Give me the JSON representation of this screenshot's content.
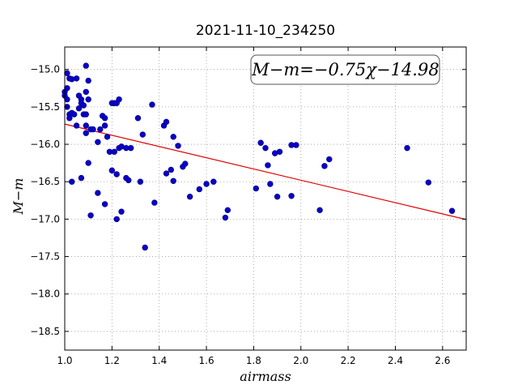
{
  "chart_data": {
    "type": "scatter",
    "title": "2021-11-10_234250",
    "xlabel": "airmass",
    "ylabel": "M−m",
    "xlim": [
      1.0,
      2.7
    ],
    "ylim": [
      -18.75,
      -14.7
    ],
    "invert_y": true,
    "x_ticks": [
      1.0,
      1.2,
      1.4,
      1.6,
      1.8,
      2.0,
      2.2,
      2.4,
      2.6
    ],
    "x_tick_labels": [
      "1.0",
      "1.2",
      "1.4",
      "1.6",
      "1.8",
      "2.0",
      "2.2",
      "2.4",
      "2.6"
    ],
    "y_ticks": [
      -15.0,
      -15.5,
      -16.0,
      -16.5,
      -17.0,
      -17.5,
      -18.0,
      -18.5
    ],
    "y_tick_labels": [
      "−15.0",
      "−15.5",
      "−16.0",
      "−16.5",
      "−17.0",
      "−17.5",
      "−18.0",
      "−18.5"
    ],
    "grid": true,
    "annotation": "M−m=−0.75χ−14.98",
    "fit": {
      "slope": -0.75,
      "intercept": -14.98
    },
    "colors": {
      "points": "#0a00c8",
      "fit_line": "#e00000"
    },
    "points": [
      [
        1.0,
        -15.3
      ],
      [
        1.0,
        -15.35
      ],
      [
        1.01,
        -15.05
      ],
      [
        1.01,
        -15.25
      ],
      [
        1.01,
        -15.4
      ],
      [
        1.01,
        -15.5
      ],
      [
        1.02,
        -15.6
      ],
      [
        1.02,
        -15.12
      ],
      [
        1.03,
        -15.13
      ],
      [
        1.02,
        -15.65
      ],
      [
        1.03,
        -15.58
      ],
      [
        1.03,
        -16.5
      ],
      [
        1.04,
        -15.6
      ],
      [
        1.05,
        -15.12
      ],
      [
        1.05,
        -15.75
      ],
      [
        1.06,
        -15.52
      ],
      [
        1.06,
        -15.35
      ],
      [
        1.07,
        -15.4
      ],
      [
        1.07,
        -15.45
      ],
      [
        1.08,
        -15.48
      ],
      [
        1.07,
        -16.45
      ],
      [
        1.08,
        -15.6
      ],
      [
        1.09,
        -15.3
      ],
      [
        1.09,
        -15.6
      ],
      [
        1.09,
        -15.75
      ],
      [
        1.09,
        -15.85
      ],
      [
        1.09,
        -14.95
      ],
      [
        1.1,
        -15.15
      ],
      [
        1.1,
        -15.4
      ],
      [
        1.1,
        -16.25
      ],
      [
        1.11,
        -15.8
      ],
      [
        1.11,
        -16.95
      ],
      [
        1.12,
        -15.8
      ],
      [
        1.14,
        -15.97
      ],
      [
        1.14,
        -16.65
      ],
      [
        1.15,
        -15.8
      ],
      [
        1.16,
        -15.62
      ],
      [
        1.17,
        -15.65
      ],
      [
        1.17,
        -15.75
      ],
      [
        1.17,
        -16.8
      ],
      [
        1.18,
        -15.9
      ],
      [
        1.19,
        -16.1
      ],
      [
        1.2,
        -15.45
      ],
      [
        1.2,
        -16.35
      ],
      [
        1.21,
        -15.45
      ],
      [
        1.21,
        -16.1
      ],
      [
        1.22,
        -16.4
      ],
      [
        1.22,
        -17.0
      ],
      [
        1.22,
        -15.45
      ],
      [
        1.23,
        -15.4
      ],
      [
        1.23,
        -16.05
      ],
      [
        1.24,
        -16.03
      ],
      [
        1.24,
        -16.9
      ],
      [
        1.26,
        -16.05
      ],
      [
        1.26,
        -16.45
      ],
      [
        1.27,
        -16.48
      ],
      [
        1.28,
        -16.05
      ],
      [
        1.31,
        -15.65
      ],
      [
        1.32,
        -16.5
      ],
      [
        1.33,
        -15.87
      ],
      [
        1.34,
        -17.38
      ],
      [
        1.37,
        -15.47
      ],
      [
        1.38,
        -16.78
      ],
      [
        1.42,
        -15.75
      ],
      [
        1.43,
        -15.7
      ],
      [
        1.43,
        -16.39
      ],
      [
        1.45,
        -16.34
      ],
      [
        1.46,
        -15.9
      ],
      [
        1.46,
        -16.49
      ],
      [
        1.48,
        -16.02
      ],
      [
        1.5,
        -16.3
      ],
      [
        1.51,
        -16.26
      ],
      [
        1.53,
        -16.7
      ],
      [
        1.57,
        -16.6
      ],
      [
        1.6,
        -16.53
      ],
      [
        1.63,
        -16.5
      ],
      [
        1.68,
        -16.98
      ],
      [
        1.69,
        -16.88
      ],
      [
        1.81,
        -16.59
      ],
      [
        1.83,
        -15.98
      ],
      [
        1.85,
        -16.05
      ],
      [
        1.86,
        -16.28
      ],
      [
        1.87,
        -16.53
      ],
      [
        1.89,
        -16.12
      ],
      [
        1.9,
        -16.7
      ],
      [
        1.91,
        -16.1
      ],
      [
        1.96,
        -16.01
      ],
      [
        1.96,
        -16.69
      ],
      [
        1.98,
        -16.01
      ],
      [
        2.08,
        -16.88
      ],
      [
        2.1,
        -16.29
      ],
      [
        2.12,
        -16.2
      ],
      [
        2.45,
        -16.05
      ],
      [
        2.54,
        -16.51
      ],
      [
        2.64,
        -16.89
      ]
    ]
  }
}
